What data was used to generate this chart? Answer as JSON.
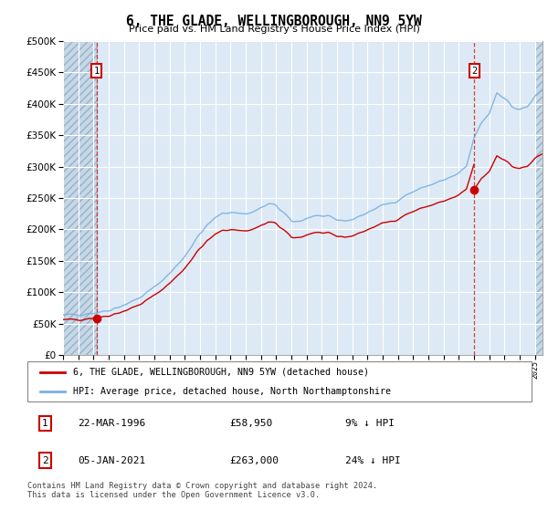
{
  "title": "6, THE GLADE, WELLINGBOROUGH, NN9 5YW",
  "subtitle": "Price paid vs. HM Land Registry's House Price Index (HPI)",
  "legend_label_red": "6, THE GLADE, WELLINGBOROUGH, NN9 5YW (detached house)",
  "legend_label_blue": "HPI: Average price, detached house, North Northamptonshire",
  "annotation1_date": "22-MAR-1996",
  "annotation1_price": "£58,950",
  "annotation1_hpi": "9% ↓ HPI",
  "annotation2_date": "05-JAN-2021",
  "annotation2_price": "£263,000",
  "annotation2_hpi": "24% ↓ HPI",
  "footer": "Contains HM Land Registry data © Crown copyright and database right 2024.\nThis data is licensed under the Open Government Licence v3.0.",
  "ylim": [
    0,
    500000
  ],
  "yticks": [
    0,
    50000,
    100000,
    150000,
    200000,
    250000,
    300000,
    350000,
    400000,
    450000,
    500000
  ],
  "background_color": "#ddeaf5",
  "hatch_color": "#c5d8e8",
  "grid_color": "#ffffff",
  "line_color_red": "#cc0000",
  "line_color_blue": "#7aafe0",
  "purchase1_year": 1996.205,
  "purchase1_value": 58950,
  "purchase2_year": 2021.014,
  "purchase2_value": 263000,
  "xmin": 1994.0,
  "xmax": 2025.5
}
